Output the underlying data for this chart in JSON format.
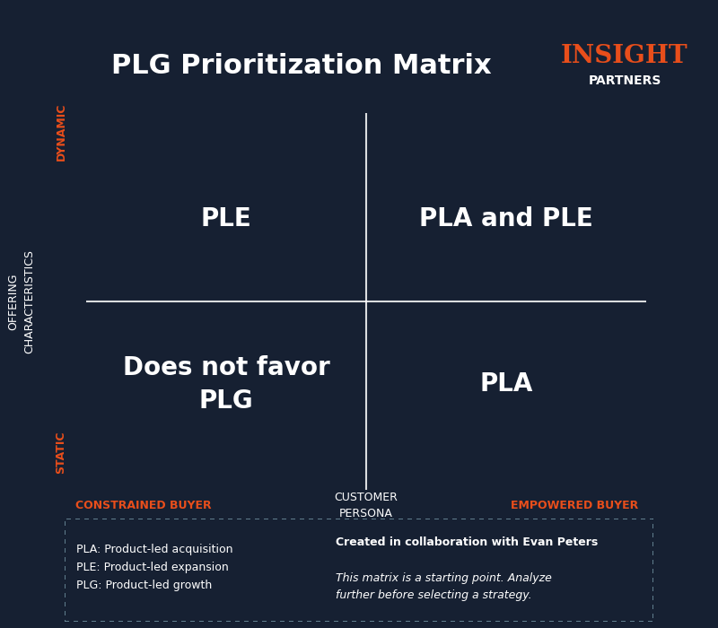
{
  "title": "PLG Prioritization Matrix",
  "bg_color": "#162032",
  "grid_color": "#FFFFFF",
  "text_color": "#FFFFFF",
  "accent_color": "#E84E1B",
  "quadrant_labels": {
    "top_left": "PLE",
    "top_right": "PLA and PLE",
    "bottom_left": "Does not favor\nPLG",
    "bottom_right": "PLA"
  },
  "x_axis_label": "CUSTOMER\nPERSONA",
  "y_axis_label": "OFFERING\nCHARACTERISTICS",
  "x_left_label": "CONSTRAINED BUYER",
  "x_right_label": "EMPOWERED BUYER",
  "y_top_label": "DYNAMIC",
  "y_bottom_label": "STATIC",
  "logo_text_insight": "INSIGHT",
  "logo_text_partners": "PARTNERS",
  "footer_left": [
    "PLA: Product-led acquisition",
    "PLE: Product-led expansion",
    "PLG: Product-led growth"
  ],
  "footer_right_bold": "Created in collaboration with Evan Peters",
  "footer_right_italic": "This matrix is a starting point. Analyze\nfurther before selecting a strategy.",
  "title_fontsize": 22,
  "quadrant_label_fontsize": 20,
  "axis_label_fontsize": 9,
  "footer_fontsize": 9,
  "logo_insight_fontsize": 20,
  "logo_partners_fontsize": 10
}
